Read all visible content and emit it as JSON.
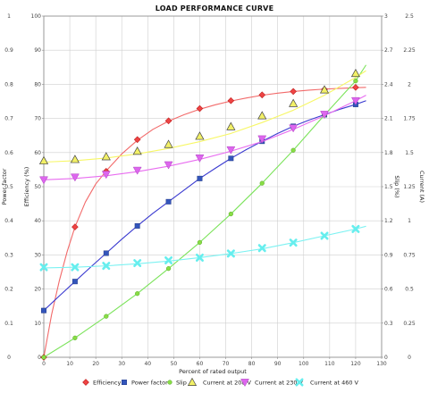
{
  "chart_data": {
    "type": "line",
    "title": "LOAD PERFORMANCE CURVE",
    "xlabel": "Percent of rated output",
    "x_ticks": [
      0,
      10,
      20,
      30,
      40,
      50,
      60,
      70,
      80,
      90,
      100,
      110,
      120,
      130
    ],
    "xlim": [
      0,
      130
    ],
    "left_axis_labels": [
      "Power factor",
      "Efficiency (%)"
    ],
    "y_ticks_power_factor": [
      "0",
      "0.1",
      "0.2",
      "0.3",
      "0.4",
      "0.5",
      "0.6",
      "0.7",
      "0.8",
      "0.9",
      "1"
    ],
    "y_ticks_efficiency": [
      "0",
      "10",
      "20",
      "30",
      "40",
      "50",
      "60",
      "70",
      "80",
      "90",
      "100"
    ],
    "ylim_efficiency": [
      0,
      100
    ],
    "right_axis_slip_label": "Slip (%)",
    "y_ticks_slip": [
      "0",
      "0.3",
      "0.6",
      "0.9",
      "1.2",
      "1.5",
      "1.8",
      "2.1",
      "2.4",
      "2.7",
      "3"
    ],
    "ylim_slip": [
      0,
      3
    ],
    "right_axis_current_label": "Current (A)",
    "y_ticks_current": [
      "0",
      "0.25",
      "0.5",
      "0.75",
      "1",
      "1.25",
      "1.5",
      "1.75",
      "2",
      "2.25",
      "2.5"
    ],
    "ylim_current": [
      0,
      2.5
    ],
    "grid": true,
    "legend_position": "bottom",
    "series": [
      {
        "name": "Efficiency",
        "axis": "efficiency",
        "color": "#ee4444",
        "line_color": "#f26a6a",
        "marker": "diamond",
        "x": [
          0,
          12,
          24,
          36,
          48,
          60,
          72,
          84,
          96,
          108,
          120
        ],
        "y": [
          0,
          38.2,
          54.5,
          63.8,
          69.3,
          72.9,
          75.2,
          76.9,
          77.9,
          78.5,
          79.1
        ],
        "fit_x": [
          0,
          3,
          6,
          9,
          12,
          16,
          20,
          24,
          30,
          36,
          42,
          48,
          54,
          60,
          66,
          72,
          78,
          84,
          90,
          96,
          102,
          108,
          114,
          120,
          124
        ],
        "fit_y": [
          0,
          12.5,
          22.5,
          31,
          38.2,
          45.5,
          50.8,
          54.6,
          59.6,
          63.6,
          66.8,
          69.2,
          71.1,
          72.7,
          74.0,
          75.1,
          76.0,
          76.8,
          77.4,
          77.9,
          78.3,
          78.6,
          78.8,
          79.0,
          79.1
        ]
      },
      {
        "name": "Power factor",
        "axis": "efficiency",
        "color": "#3355bb",
        "line_color": "#3a3ad0",
        "marker": "square",
        "x": [
          0,
          12,
          24,
          36,
          48,
          60,
          72,
          84,
          96,
          108,
          120
        ],
        "y": [
          13.7,
          22.2,
          30.5,
          38.5,
          45.6,
          52.4,
          58.3,
          63.3,
          67.7,
          71.1,
          74.1
        ],
        "fit_x": [
          0,
          6,
          12,
          18,
          24,
          30,
          36,
          42,
          48,
          54,
          60,
          66,
          72,
          78,
          84,
          90,
          96,
          102,
          108,
          114,
          120,
          124
        ],
        "fit_y": [
          13.7,
          18.0,
          22.2,
          26.4,
          30.5,
          34.6,
          38.5,
          42.2,
          45.6,
          49.0,
          52.4,
          55.4,
          58.3,
          60.9,
          63.3,
          65.6,
          67.7,
          69.5,
          71.1,
          72.7,
          74.1,
          75.2
        ]
      },
      {
        "name": "Slip",
        "axis": "slip",
        "color": "#88dd44",
        "line_color": "#7be35a",
        "marker": "circle",
        "x": [
          0,
          12,
          24,
          36,
          48,
          60,
          72,
          84,
          96,
          108,
          120
        ],
        "y": [
          0,
          0.17,
          0.36,
          0.56,
          0.78,
          1.01,
          1.26,
          1.53,
          1.82,
          2.13,
          2.43
        ],
        "fit_x": [
          0,
          12,
          24,
          36,
          48,
          60,
          72,
          84,
          96,
          108,
          120,
          124
        ],
        "fit_y": [
          0,
          0.17,
          0.36,
          0.56,
          0.78,
          1.01,
          1.26,
          1.53,
          1.82,
          2.13,
          2.43,
          2.57
        ]
      },
      {
        "name": "Current at 208 V",
        "axis": "current",
        "color": "#f2f066",
        "line_color": "#f7f766",
        "marker": "triangle-up",
        "x": [
          0,
          12,
          24,
          36,
          48,
          60,
          72,
          84,
          96,
          108,
          120
        ],
        "y": [
          1.44,
          1.45,
          1.47,
          1.51,
          1.56,
          1.62,
          1.69,
          1.77,
          1.86,
          1.96,
          2.08
        ],
        "fit_x": [
          0,
          12,
          24,
          36,
          48,
          60,
          72,
          84,
          96,
          108,
          120,
          124
        ],
        "fit_y": [
          1.43,
          1.44,
          1.46,
          1.49,
          1.53,
          1.58,
          1.64,
          1.72,
          1.81,
          1.92,
          2.05,
          2.1
        ]
      },
      {
        "name": "Current at 230 V",
        "axis": "current",
        "color": "#dd66ee",
        "line_color": "#e86cf0",
        "marker": "triangle-down",
        "x": [
          0,
          12,
          24,
          36,
          48,
          60,
          72,
          84,
          96,
          108,
          120
        ],
        "y": [
          1.3,
          1.32,
          1.34,
          1.37,
          1.41,
          1.46,
          1.52,
          1.6,
          1.68,
          1.78,
          1.88
        ],
        "fit_x": [
          0,
          12,
          24,
          36,
          48,
          60,
          72,
          84,
          96,
          108,
          120,
          124
        ],
        "fit_y": [
          1.3,
          1.31,
          1.33,
          1.36,
          1.4,
          1.45,
          1.51,
          1.58,
          1.67,
          1.77,
          1.88,
          1.92
        ]
      },
      {
        "name": "Current at 460 V",
        "axis": "current",
        "color": "#66eeee",
        "line_color": "#7cf2f2",
        "marker": "x",
        "x": [
          0,
          12,
          24,
          36,
          48,
          60,
          72,
          84,
          96,
          108,
          120
        ],
        "y": [
          0.66,
          0.66,
          0.67,
          0.69,
          0.71,
          0.73,
          0.76,
          0.8,
          0.84,
          0.89,
          0.94
        ],
        "fit_x": [
          0,
          12,
          24,
          36,
          48,
          60,
          72,
          84,
          96,
          108,
          120,
          124
        ],
        "fit_y": [
          0.655,
          0.66,
          0.67,
          0.685,
          0.705,
          0.73,
          0.76,
          0.795,
          0.84,
          0.89,
          0.94,
          0.96
        ]
      }
    ]
  }
}
